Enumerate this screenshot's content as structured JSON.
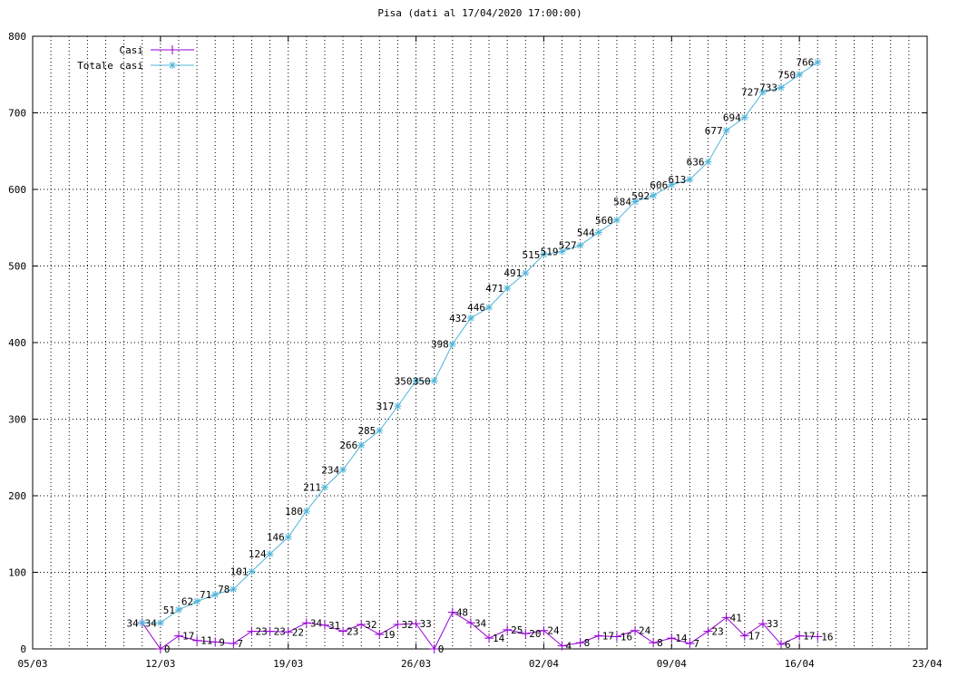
{
  "chart_data": {
    "type": "line",
    "title": "Pisa (dati al 17/04/2020 17:00:00)",
    "xlabel": "",
    "ylabel": "",
    "xlim": [
      "05/03",
      "23/04"
    ],
    "ylim": [
      0,
      800
    ],
    "x_ticks": [
      "05/03",
      "12/03",
      "19/03",
      "26/03",
      "02/04",
      "09/04",
      "16/04",
      "23/04"
    ],
    "y_ticks": [
      "0",
      "100",
      "200",
      "300",
      "400",
      "500",
      "600",
      "700",
      "800"
    ],
    "grid": true,
    "legend_position": "top-left",
    "x": [
      "11/03",
      "12/03",
      "13/03",
      "14/03",
      "15/03",
      "16/03",
      "17/03",
      "18/03",
      "19/03",
      "20/03",
      "21/03",
      "22/03",
      "23/03",
      "24/03",
      "25/03",
      "26/03",
      "27/03",
      "28/03",
      "29/03",
      "30/03",
      "31/03",
      "01/04",
      "02/04",
      "03/04",
      "04/04",
      "05/04",
      "06/04",
      "07/04",
      "08/04",
      "09/04",
      "10/04",
      "11/04",
      "12/04",
      "13/04",
      "14/04",
      "15/04",
      "16/04",
      "17/04"
    ],
    "series": [
      {
        "name": "Casi",
        "color": "#9400d3",
        "marker": "+",
        "values": [
          34,
          0,
          17,
          11,
          9,
          7,
          23,
          23,
          22,
          34,
          31,
          23,
          32,
          19,
          32,
          33,
          0,
          48,
          34,
          14,
          25,
          20,
          24,
          4,
          8,
          17,
          16,
          24,
          8,
          14,
          7,
          23,
          41,
          17,
          33,
          6,
          17,
          16
        ],
        "labels": [
          "",
          "0",
          "17",
          "11",
          "9",
          "7",
          "23",
          "23",
          "22",
          "34",
          "31",
          "23",
          "32",
          "19",
          "32",
          "33",
          "0",
          "48",
          "34",
          "14",
          "25",
          "20",
          "24",
          "4",
          "8",
          "17",
          "16",
          "24",
          "8",
          "14",
          "7",
          "23",
          "41",
          "17",
          "33",
          "6",
          "17",
          "16"
        ]
      },
      {
        "name": "Totale casi",
        "color": "#4fb4d8",
        "marker": "*",
        "values": [
          34,
          34,
          51,
          62,
          71,
          78,
          101,
          124,
          146,
          180,
          211,
          234,
          266,
          285,
          317,
          350,
          350,
          398,
          432,
          446,
          471,
          491,
          515,
          519,
          527,
          544,
          560,
          584,
          592,
          606,
          613,
          636,
          677,
          694,
          727,
          733,
          750,
          766
        ],
        "labels": [
          "34",
          "34",
          "51",
          "62",
          "71",
          "78",
          "101",
          "124",
          "146",
          "180",
          "211",
          "234",
          "266",
          "285",
          "317",
          "350",
          "350",
          "398",
          "432",
          "446",
          "471",
          "491",
          "515",
          "519",
          "527",
          "544",
          "560",
          "584",
          "592",
          "606",
          "613",
          "636",
          "677",
          "694",
          "727",
          "733",
          "750",
          "766"
        ]
      }
    ]
  }
}
